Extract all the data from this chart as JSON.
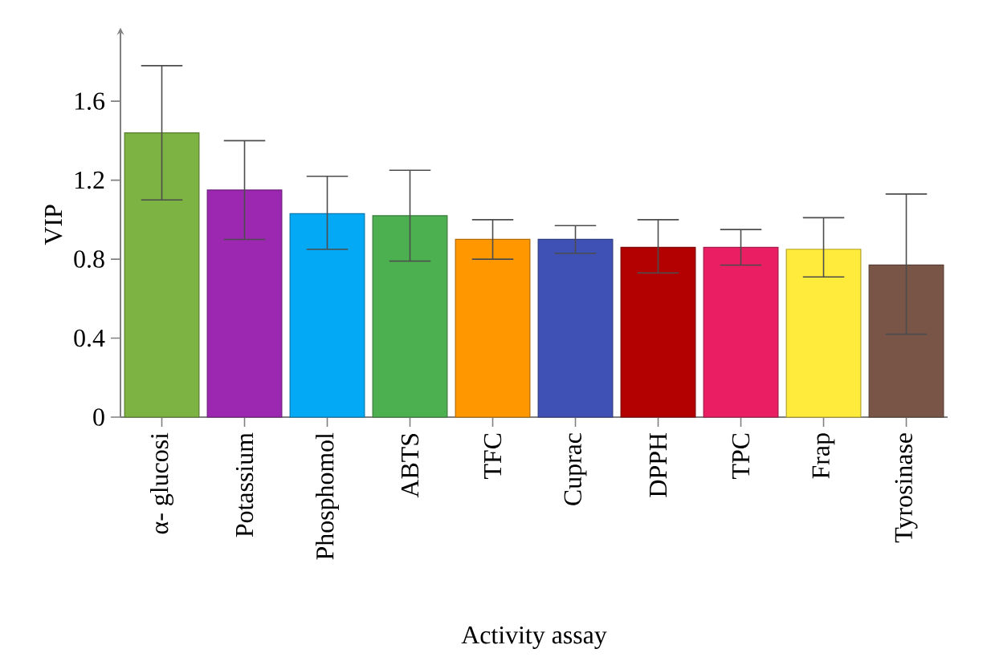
{
  "chart_data": {
    "type": "bar",
    "xlabel": "Activity assay",
    "ylabel": "VIP",
    "categories": [
      "α- glucosi",
      "Potassium",
      "Phosphomol",
      "ABTS",
      "TFC",
      "Cuprac",
      "DPPH",
      "TPC",
      "Frap",
      "Tyrosinase"
    ],
    "values": [
      1.44,
      1.15,
      1.03,
      1.02,
      0.9,
      0.9,
      0.86,
      0.86,
      0.85,
      0.77
    ],
    "errors": [
      [
        1.1,
        1.78
      ],
      [
        0.9,
        1.4
      ],
      [
        0.85,
        1.22
      ],
      [
        0.79,
        1.25
      ],
      [
        0.8,
        1.0
      ],
      [
        0.83,
        0.97
      ],
      [
        0.73,
        1.0
      ],
      [
        0.77,
        0.95
      ],
      [
        0.71,
        1.01
      ],
      [
        0.42,
        1.13
      ]
    ],
    "colors": [
      "#7cb342",
      "#9c27b0",
      "#03a9f4",
      "#4caf50",
      "#ff9800",
      "#3f51b5",
      "#b30000",
      "#e91e63",
      "#ffeb3b",
      "#795548"
    ],
    "ylim": [
      0,
      1.95
    ],
    "yticks": [
      0,
      0.4,
      0.8,
      1.2,
      1.6
    ]
  }
}
